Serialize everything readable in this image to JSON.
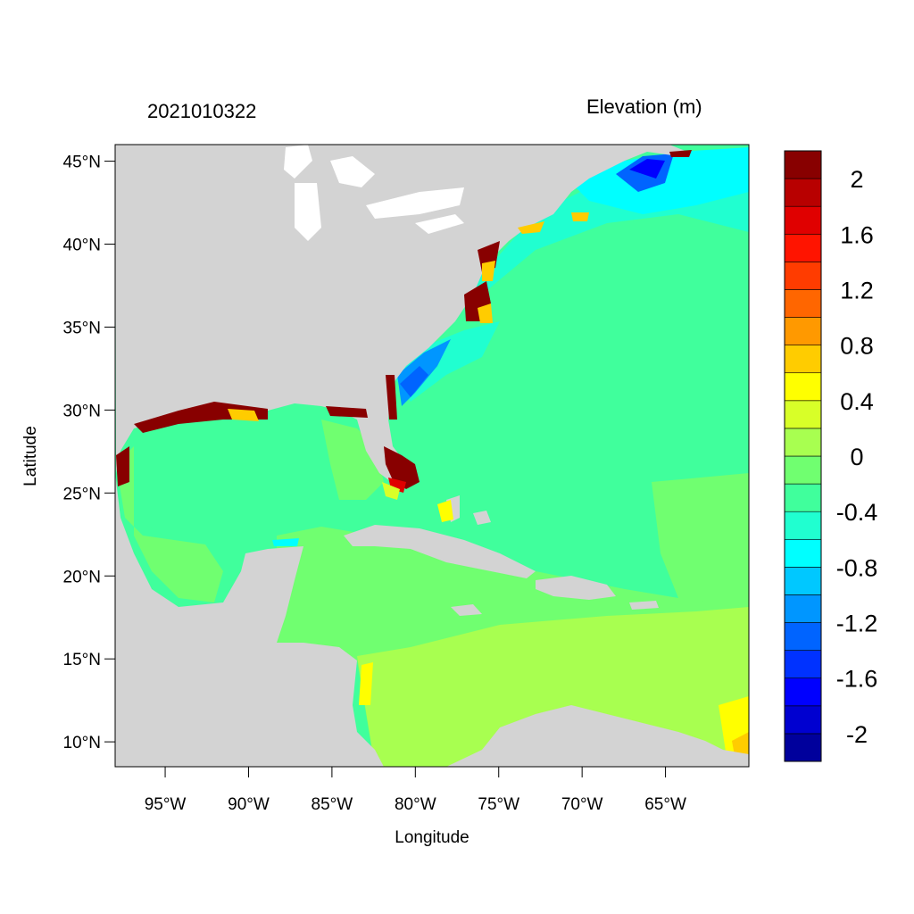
{
  "title_left": "2021010322",
  "title_right": "Elevation (m)",
  "xlabel": "Longitude",
  "ylabel": "Latitude",
  "map": {
    "lon_range": [
      -98,
      -60
    ],
    "lat_range": [
      8.5,
      46
    ],
    "land_color": "#d3d3d3",
    "lakes_color": "#ffffff"
  },
  "lat_ticks": [
    {
      "value": 45,
      "label": "45°N"
    },
    {
      "value": 40,
      "label": "40°N"
    },
    {
      "value": 35,
      "label": "35°N"
    },
    {
      "value": 30,
      "label": "30°N"
    },
    {
      "value": 25,
      "label": "25°N"
    },
    {
      "value": 20,
      "label": "20°N"
    },
    {
      "value": 15,
      "label": "15°N"
    },
    {
      "value": 10,
      "label": "10°N"
    }
  ],
  "lon_ticks": [
    {
      "value": -95,
      "label": "95°W"
    },
    {
      "value": -90,
      "label": "90°W"
    },
    {
      "value": -85,
      "label": "85°W"
    },
    {
      "value": -80,
      "label": "80°W"
    },
    {
      "value": -75,
      "label": "75°W"
    },
    {
      "value": -70,
      "label": "70°W"
    },
    {
      "value": -65,
      "label": "65°W"
    }
  ],
  "colorbar": {
    "colors": [
      "#00009c",
      "#0000d0",
      "#0000ff",
      "#0032ff",
      "#0064ff",
      "#0096ff",
      "#00c8ff",
      "#00ffff",
      "#20ffd0",
      "#40ff9c",
      "#70ff70",
      "#a8ff50",
      "#d8ff28",
      "#ffff00",
      "#ffcc00",
      "#ff9900",
      "#ff6600",
      "#ff3c00",
      "#ff1400",
      "#e00000",
      "#b80000",
      "#880000"
    ],
    "labels": [
      {
        "value": 2,
        "label": "2"
      },
      {
        "value": 1.6,
        "label": "1.6"
      },
      {
        "value": 1.2,
        "label": "1.2"
      },
      {
        "value": 0.8,
        "label": "0.8"
      },
      {
        "value": 0.4,
        "label": "0.4"
      },
      {
        "value": 0,
        "label": "0"
      },
      {
        "value": -0.4,
        "label": "-0.4"
      },
      {
        "value": -0.8,
        "label": "-0.8"
      },
      {
        "value": -1.2,
        "label": "-1.2"
      },
      {
        "value": -1.6,
        "label": "-1.6"
      },
      {
        "value": -2,
        "label": "-2"
      }
    ]
  }
}
